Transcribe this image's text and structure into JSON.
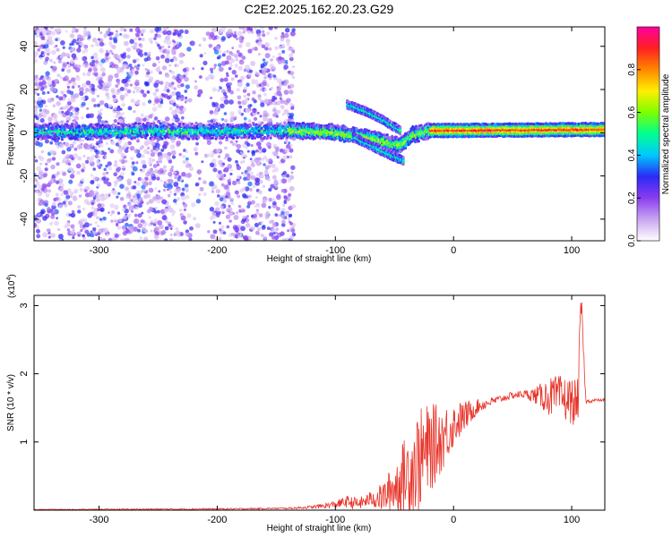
{
  "title": "C2E2.2025.162.20.23.G29",
  "chart_data": [
    {
      "type": "heatmap",
      "xlabel": "Height of straight line (km)",
      "ylabel": "Frequency (Hz)",
      "xlim": [
        -355,
        128
      ],
      "ylim": [
        -50,
        49
      ],
      "xticks": [
        -300,
        -200,
        -100,
        0,
        100
      ],
      "yticks": [
        -40,
        -20,
        0,
        20,
        40
      ],
      "colorbar": {
        "label": "Normalized spectral amplitude",
        "range": [
          0,
          1
        ],
        "ticks": [
          "0.0",
          "0.2",
          "0.4",
          "0.6",
          "0.8"
        ],
        "tick_values": [
          0.0,
          0.2,
          0.4,
          0.6,
          0.8
        ],
        "colors": [
          "#ffffff",
          "#c9a6f0",
          "#8a3cf0",
          "#2a2af5",
          "#00c8ff",
          "#00ff90",
          "#7cff00",
          "#ffee00",
          "#ff8800",
          "#ff2020",
          "#ff00a0"
        ]
      },
      "main_ridge": [
        {
          "x": -355,
          "y": 0.5
        },
        {
          "x": -140,
          "y": 1.0
        },
        {
          "x": -105,
          "y": 0.5
        },
        {
          "x": -80,
          "y": -1.5
        },
        {
          "x": -60,
          "y": -4.0
        },
        {
          "x": -45,
          "y": -6.0
        },
        {
          "x": -35,
          "y": -1.0
        },
        {
          "x": -20,
          "y": 1.0
        },
        {
          "x": 128,
          "y": 1.5
        }
      ],
      "upper_branch": [
        {
          "x": -90,
          "y": 13
        },
        {
          "x": -75,
          "y": 10
        },
        {
          "x": -60,
          "y": 6
        },
        {
          "x": -45,
          "y": 1
        }
      ],
      "lower_branch": [
        {
          "x": -85,
          "y": -2
        },
        {
          "x": -70,
          "y": -6
        },
        {
          "x": -55,
          "y": -10
        },
        {
          "x": -42,
          "y": -13
        }
      ]
    },
    {
      "type": "line",
      "xlabel": "Height of straight line (km)",
      "ylabel": "SNR (10 * v/v)",
      "yscale_label": "(x10",
      "yscale_exp": "4",
      "xlim": [
        -355,
        128
      ],
      "ylim": [
        0,
        3.15
      ],
      "xticks": [
        -300,
        -200,
        -100,
        0,
        100
      ],
      "yticks": [
        1,
        2,
        3
      ],
      "color": "#e8342a",
      "series": [
        {
          "x": [
            -355,
            -200,
            -140,
            -120,
            -100,
            -90,
            -80,
            -70,
            -60,
            -50,
            -40,
            -30,
            -20,
            -10,
            0,
            10,
            20,
            30,
            40,
            50,
            60,
            70,
            80,
            90,
            100,
            105,
            108,
            112,
            120,
            128
          ],
          "y": [
            0.01,
            0.02,
            0.03,
            0.05,
            0.1,
            0.15,
            0.12,
            0.2,
            0.25,
            0.45,
            0.7,
            0.95,
            1.1,
            1.2,
            1.35,
            1.45,
            1.55,
            1.6,
            1.65,
            1.7,
            1.72,
            1.72,
            1.75,
            1.75,
            1.7,
            1.65,
            3.1,
            1.6,
            1.62,
            1.62
          ],
          "noise": [
            0.005,
            0.01,
            0.01,
            0.02,
            0.05,
            0.08,
            0.08,
            0.1,
            0.2,
            0.35,
            0.55,
            0.7,
            0.6,
            0.45,
            0.3,
            0.2,
            0.1,
            0.06,
            0.05,
            0.05,
            0.05,
            0.12,
            0.25,
            0.3,
            0.3,
            0.35,
            0.2,
            0.03,
            0.02,
            0.02
          ]
        }
      ]
    }
  ]
}
